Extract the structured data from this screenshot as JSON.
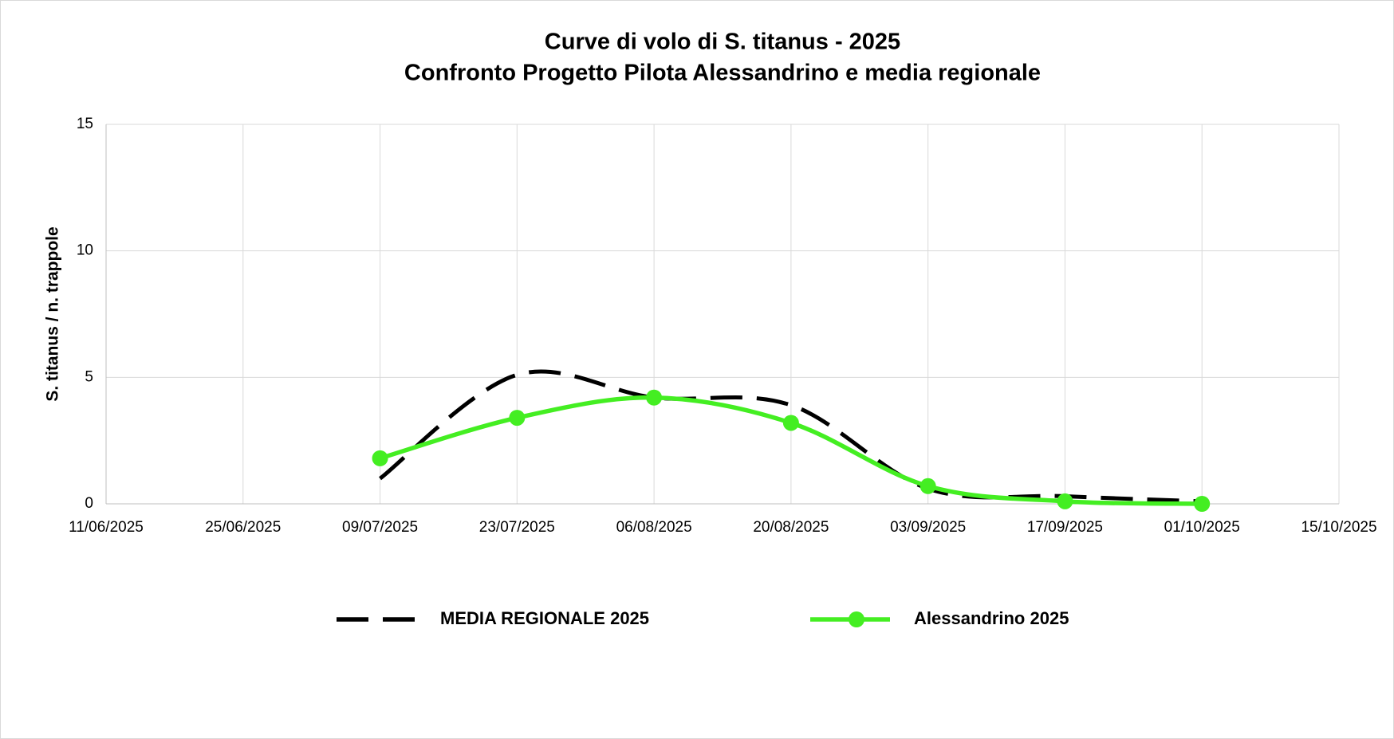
{
  "chart_data": {
    "type": "line",
    "title": [
      "Curve di volo di S. titanus - 2025",
      "Confronto Progetto Pilota Alessandrino e media regionale"
    ],
    "y_label": "S. titanus / n. trappole",
    "x": [
      "09/07/2025",
      "23/07/2025",
      "06/08/2025",
      "20/08/2025",
      "03/09/2025",
      "17/09/2025",
      "01/10/2025"
    ],
    "series": [
      {
        "name": "MEDIA REGIONALE 2025",
        "color": "#000000",
        "dashed": true,
        "marker": false,
        "values": [
          1.0,
          5.1,
          4.2,
          3.9,
          0.6,
          0.3,
          0.1
        ]
      },
      {
        "name": "Alessandrino 2025",
        "color": "#44ee22",
        "dashed": false,
        "marker": true,
        "values": [
          1.8,
          3.4,
          4.2,
          3.2,
          0.7,
          0.1,
          0.0
        ]
      }
    ],
    "xlim": [
      "11/06/2025",
      "15/10/2025"
    ],
    "xticks": [
      "11/06/2025",
      "25/06/2025",
      "09/07/2025",
      "23/07/2025",
      "06/08/2025",
      "20/08/2025",
      "03/09/2025",
      "17/09/2025",
      "01/10/2025",
      "15/10/2025"
    ],
    "ylim": [
      0,
      15
    ],
    "yticks": [
      0,
      5,
      10,
      15
    ],
    "grid": true,
    "smooth": true,
    "legend": "bottom"
  }
}
